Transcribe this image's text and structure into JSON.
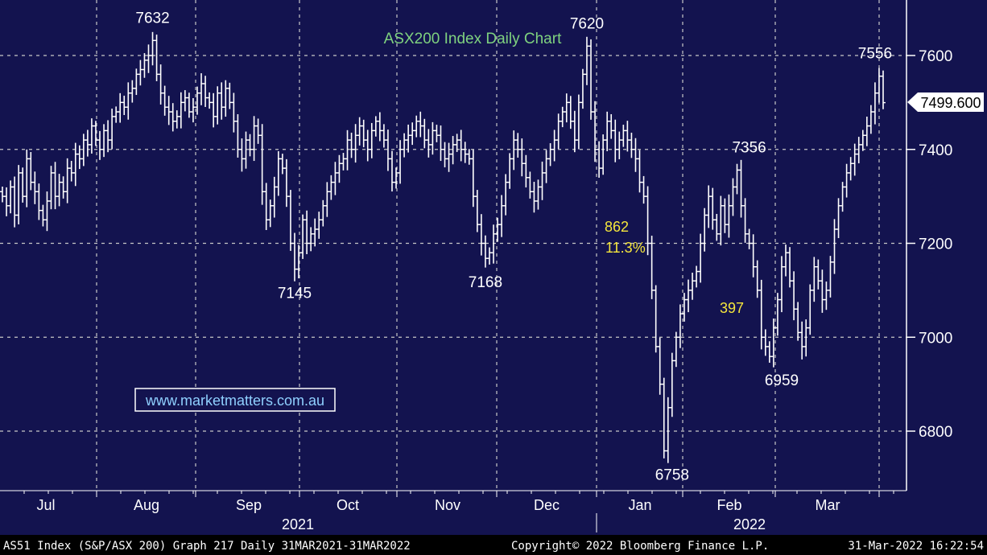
{
  "chart_data": {
    "type": "bar",
    "subtype": "ohlc-daily",
    "title": "ASX200 Index Daily Chart",
    "ylim": [
      6660,
      7740
    ],
    "yticks": [
      6800,
      7000,
      7200,
      7400,
      7600
    ],
    "last_price": "7499.600",
    "months": [
      "Jul",
      "Aug",
      "Sep",
      "Oct",
      "Nov",
      "Dec",
      "Jan",
      "Feb",
      "Mar"
    ],
    "years": [
      "2021",
      "2022"
    ],
    "grid": true,
    "daily_closes": [
      7300,
      7280,
      7320,
      7260,
      7350,
      7300,
      7380,
      7330,
      7310,
      7270,
      7250,
      7290,
      7350,
      7300,
      7330,
      7310,
      7360,
      7350,
      7390,
      7380,
      7420,
      7410,
      7450,
      7420,
      7400,
      7440,
      7420,
      7470,
      7480,
      7500,
      7490,
      7520,
      7530,
      7560,
      7570,
      7590,
      7600,
      7632,
      7560,
      7520,
      7490,
      7480,
      7460,
      7470,
      7500,
      7510,
      7480,
      7490,
      7520,
      7540,
      7510,
      7500,
      7470,
      7520,
      7490,
      7530,
      7500,
      7460,
      7400,
      7380,
      7420,
      7400,
      7450,
      7430,
      7310,
      7250,
      7280,
      7320,
      7380,
      7360,
      7300,
      7200,
      7145,
      7180,
      7250,
      7200,
      7220,
      7230,
      7250,
      7280,
      7310,
      7330,
      7350,
      7370,
      7380,
      7420,
      7400,
      7430,
      7450,
      7420,
      7400,
      7440,
      7460,
      7440,
      7420,
      7380,
      7330,
      7350,
      7400,
      7420,
      7430,
      7440,
      7460,
      7450,
      7420,
      7410,
      7440,
      7430,
      7400,
      7380,
      7390,
      7410,
      7420,
      7400,
      7390,
      7380,
      7300,
      7240,
      7200,
      7168,
      7180,
      7220,
      7240,
      7280,
      7330,
      7380,
      7420,
      7400,
      7370,
      7340,
      7310,
      7290,
      7320,
      7350,
      7380,
      7400,
      7420,
      7460,
      7480,
      7500,
      7460,
      7420,
      7500,
      7560,
      7620,
      7480,
      7400,
      7360,
      7420,
      7460,
      7440,
      7400,
      7420,
      7440,
      7420,
      7400,
      7380,
      7330,
      7300,
      7200,
      7100,
      6980,
      6900,
      6758,
      6850,
      6950,
      7000,
      7050,
      7080,
      7100,
      7120,
      7140,
      7200,
      7260,
      7300,
      7250,
      7220,
      7280,
      7240,
      7280,
      7320,
      7356,
      7280,
      7220,
      7200,
      7150,
      7100,
      7000,
      6980,
      6959,
      7020,
      7080,
      7150,
      7180,
      7120,
      7060,
      7010,
      6980,
      7020,
      7100,
      7150,
      7120,
      7080,
      7100,
      7160,
      7230,
      7280,
      7320,
      7350,
      7370,
      7390,
      7410,
      7430,
      7450,
      7480,
      7520,
      7556,
      7499.6
    ],
    "annotations": [
      {
        "label": "7632",
        "x_day": 37,
        "value": 7632,
        "type": "peak"
      },
      {
        "label": "7145",
        "x_day": 72,
        "value": 7145,
        "type": "trough"
      },
      {
        "label": "7168",
        "x_day": 119,
        "value": 7168,
        "type": "trough"
      },
      {
        "label": "7620",
        "x_day": 144,
        "value": 7620,
        "type": "peak"
      },
      {
        "label": "6758",
        "x_day": 165,
        "value": 6758,
        "type": "trough"
      },
      {
        "label": "7356",
        "x_day": 184,
        "value": 7356,
        "type": "peak"
      },
      {
        "label": "6959",
        "x_day": 192,
        "value": 6959,
        "type": "trough"
      },
      {
        "label": "7556",
        "x_day": 215,
        "value": 7556,
        "type": "peak"
      }
    ],
    "drawdown_text": [
      "862",
      "11.3%"
    ],
    "rebound_text": "397",
    "watermark": "www.marketmatters.com.au"
  },
  "footer": {
    "left": "AS51 Index (S&P/ASX 200) Graph 217  Daily 31MAR2021-31MAR2022",
    "middle": "Copyright© 2022 Bloomberg Finance L.P.",
    "right": "31-Mar-2022 16:22:54"
  },
  "colors": {
    "background": "#13134f",
    "price": "#ffffff",
    "grid": "#c8c8c8",
    "title": "#7fd27f",
    "highlight": "#f5e63c",
    "watermark": "#8fd0ff",
    "footer_bg": "#000000"
  }
}
